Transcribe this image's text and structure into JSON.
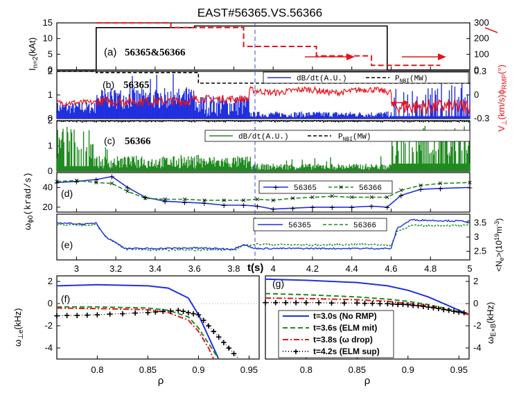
{
  "title": "EAST#56365.VS.56366",
  "colors": {
    "blue": "#1f2fe0",
    "red": "#e8131a",
    "green": "#1e8a1e",
    "black": "#000000"
  },
  "panels": {
    "a": {
      "tag": "(a)",
      "label": "56365&56366",
      "ylabel_base": "I",
      "ylabel_sub": "n=2",
      "ylabel_unit": "(kAt)",
      "y_right_base": "V",
      "y_right_sub": "⊥",
      "y_right_mid": "(km/s)ϕ",
      "y_right_sub2": "RMP",
      "y_right_unit": "(°)"
    },
    "b": {
      "tag": "(b)",
      "label": "56365",
      "legend_1": "dB/dt(A.U.)",
      "legend_2_base": "P",
      "legend_2_sub": "NBI",
      "legend_2_unit": "(MW)"
    },
    "c": {
      "tag": "(c)",
      "label": "56366",
      "legend_1": "dB/dt(A.U.)",
      "legend_2_base": "P",
      "legend_2_sub": "NBI",
      "legend_2_unit": "(MW)"
    },
    "d": {
      "tag": "(d)",
      "ylabel_base": "ω",
      "ylabel_sub": "ϕ0",
      "ylabel_unit": "(krad/s)",
      "legend_1": "56365",
      "legend_2": "56366"
    },
    "e": {
      "tag": "(e)",
      "ylabel_pre": "<N",
      "ylabel_sub": "e",
      "ylabel_post": ">(10",
      "ylabel_sup": "19",
      "ylabel_unit": "m",
      "ylabel_sup2": "-3",
      "ylabel_close": ")",
      "legend_1": "56365",
      "legend_2": "56366",
      "xlabel": "t(s)"
    },
    "f": {
      "tag": "(f)",
      "ylabel_base": "ω",
      "ylabel_sub": "⊥e",
      "ylabel_unit": "(kHz)",
      "xlabel": "ρ"
    },
    "g": {
      "tag": "(g)",
      "ylabel_base": "ω",
      "ylabel_sub": "E×B",
      "ylabel_unit": "(kHz)",
      "xlabel": "ρ",
      "legend": [
        "t=3.0s (No RMP)",
        "t=3.6s (ELM mit)",
        "t=3.8s (ω drop)",
        "t=4.2s (ELM sup)"
      ]
    }
  },
  "chart_data": [
    {
      "type": "line",
      "panel": "a",
      "xlim": [
        2.9,
        5.0
      ],
      "ylim_left": [
        0,
        15
      ],
      "ylim_right": [
        0,
        300
      ],
      "yticks_left": [
        "0",
        "5",
        "10",
        "15"
      ],
      "yticks_right": [
        "0",
        "100",
        "200",
        "300"
      ],
      "series": [
        {
          "name": "I n=2 (56365&56366)",
          "color": "black",
          "x": [
            2.9,
            3.1,
            3.1,
            3.6,
            3.6,
            3.88,
            3.88,
            4.58,
            4.58,
            5.0
          ],
          "y": [
            0,
            0,
            13.5,
            13.5,
            14,
            14,
            14,
            14,
            0,
            0
          ]
        },
        {
          "name": "ϕRMP 56365",
          "color": "red",
          "x": [
            3.1,
            3.48,
            3.48,
            3.85,
            3.85,
            4.22,
            4.22,
            4.5,
            4.5,
            4.85
          ],
          "y": [
            310,
            310,
            270,
            270,
            150,
            150,
            90,
            90,
            30,
            30
          ]
        }
      ]
    },
    {
      "type": "line",
      "panel": "b",
      "xlim": [
        2.9,
        5.0
      ],
      "ylim": [
        0,
        2
      ],
      "ylim_right": [
        -0.3,
        0.3
      ],
      "yticks_left": [
        "0",
        "1",
        "2"
      ],
      "yticks_right": [
        "-0.3",
        "0",
        "0.3"
      ],
      "series": [
        {
          "name": "dB/dt(A.U.)",
          "color": "blue"
        },
        {
          "name": "P NBI(MW)",
          "color": "black",
          "x": [
            2.9,
            3.1,
            3.1,
            3.62,
            3.62,
            5.0
          ],
          "y": [
            2.0,
            2.0,
            1.95,
            1.95,
            1.5,
            1.5
          ]
        },
        {
          "name": "V⊥ (km/s)",
          "color": "red"
        }
      ]
    },
    {
      "type": "line",
      "panel": "c",
      "xlim": [
        2.9,
        5.0
      ],
      "ylim": [
        0,
        2
      ],
      "yticks_left": [
        "0",
        "1",
        "2"
      ],
      "series": [
        {
          "name": "dB/dt(A.U.)",
          "color": "green"
        },
        {
          "name": "P NBI(MW)",
          "color": "black",
          "x": [
            2.9,
            5.0
          ],
          "y": [
            2.0,
            2.0
          ]
        }
      ]
    },
    {
      "type": "line",
      "panel": "d",
      "xlim": [
        2.9,
        5.0
      ],
      "ylim": [
        15,
        55
      ],
      "yticks_left": [
        "20",
        "40"
      ],
      "series": [
        {
          "name": "56365",
          "color": "blue",
          "x": [
            2.9,
            3.0,
            3.1,
            3.18,
            3.26,
            3.35,
            3.45,
            3.55,
            3.65,
            3.75,
            3.85,
            3.92,
            4.0,
            4.1,
            4.2,
            4.3,
            4.4,
            4.5,
            4.58,
            4.65,
            4.75,
            4.85,
            5.0
          ],
          "y": [
            45,
            46,
            48,
            51,
            40,
            30,
            26,
            25,
            24,
            22,
            22,
            21,
            18,
            19,
            20,
            20,
            20,
            21,
            20,
            32,
            38,
            39,
            40
          ]
        },
        {
          "name": "56366",
          "color": "green",
          "x": [
            2.9,
            3.0,
            3.1,
            3.18,
            3.26,
            3.35,
            3.45,
            3.55,
            3.65,
            3.75,
            3.85,
            3.92,
            4.0,
            4.1,
            4.2,
            4.3,
            4.4,
            4.5,
            4.58,
            4.65,
            4.75,
            4.85,
            5.0
          ],
          "y": [
            46,
            47,
            45,
            44,
            36,
            29,
            28,
            28,
            27,
            27,
            27,
            28,
            27,
            29,
            30,
            31,
            30,
            30,
            30,
            37,
            42,
            44,
            45
          ]
        }
      ]
    },
    {
      "type": "line",
      "panel": "e",
      "xlim": [
        2.9,
        5.0
      ],
      "ylim": [
        2.2,
        3.8
      ],
      "yticks_right": [
        "2.5",
        "3",
        "3.5"
      ],
      "xticks": [
        "3",
        "3.2",
        "3.4",
        "3.6",
        "3.8",
        "4",
        "4.2",
        "4.4",
        "4.6",
        "4.8",
        "5"
      ],
      "series": [
        {
          "name": "56365",
          "color": "blue",
          "x": [
            2.9,
            3.05,
            3.1,
            3.15,
            3.25,
            3.4,
            3.6,
            3.8,
            3.85,
            3.9,
            4.2,
            4.5,
            4.6,
            4.63,
            4.7,
            5.0
          ],
          "y": [
            3.5,
            3.45,
            3.5,
            3.0,
            2.6,
            2.6,
            2.62,
            2.58,
            2.75,
            2.6,
            2.6,
            2.6,
            2.6,
            3.3,
            3.6,
            3.55
          ]
        },
        {
          "name": "56366",
          "color": "green",
          "x": [
            2.9,
            3.05,
            3.1,
            3.15,
            3.25,
            3.4,
            3.6,
            3.8,
            3.85,
            3.9,
            4.2,
            4.5,
            4.6,
            4.63,
            4.7,
            5.0
          ],
          "y": [
            3.45,
            3.4,
            3.45,
            3.0,
            2.58,
            2.55,
            2.55,
            2.55,
            2.7,
            2.75,
            2.72,
            2.75,
            2.7,
            3.2,
            3.4,
            3.4
          ]
        }
      ]
    },
    {
      "type": "line",
      "panel": "f",
      "xlim": [
        0.76,
        0.96
      ],
      "ylim": [
        -5,
        2.5
      ],
      "yticks_left": [
        "-4",
        "-2",
        "0",
        "2"
      ],
      "xticks": [
        "0.8",
        "0.85",
        "0.9",
        "0.95"
      ],
      "series": [
        {
          "name": "t=3.0s (No RMP)",
          "color": "blue",
          "x": [
            0.76,
            0.8,
            0.85,
            0.87,
            0.89,
            0.9,
            0.91,
            0.92
          ],
          "y": [
            1.6,
            1.7,
            1.6,
            1.4,
            0.5,
            -1,
            -3,
            -5
          ]
        },
        {
          "name": "t=3.6s (ELM mit)",
          "color": "green",
          "x": [
            0.76,
            0.8,
            0.85,
            0.87,
            0.89,
            0.9,
            0.91,
            0.92
          ],
          "y": [
            -0.3,
            -0.3,
            -0.4,
            -0.6,
            -1.2,
            -2.2,
            -3.6,
            -5
          ]
        },
        {
          "name": "t=3.8s (ω drop)",
          "color": "red",
          "x": [
            0.76,
            0.8,
            0.85,
            0.87,
            0.89,
            0.9,
            0.91,
            0.915
          ],
          "y": [
            -0.4,
            -0.45,
            -0.55,
            -0.8,
            -1.5,
            -2.5,
            -4,
            -5
          ]
        },
        {
          "name": "t=4.2s (ELM sup)",
          "color": "black",
          "x": [
            0.76,
            0.8,
            0.85,
            0.88,
            0.9,
            0.92,
            0.94
          ],
          "y": [
            -1.1,
            -1.0,
            -0.8,
            -0.6,
            -1.0,
            -3.0,
            -5.0
          ]
        }
      ]
    },
    {
      "type": "line",
      "panel": "g",
      "xlim": [
        0.76,
        0.96
      ],
      "ylim": [
        -5,
        2.5
      ],
      "yticks_right": [
        "-4",
        "-2",
        "0",
        "2"
      ],
      "xticks": [
        "0.8",
        "0.85",
        "0.9",
        "0.95"
      ],
      "series": [
        {
          "name": "t=3.0s (No RMP)",
          "color": "blue",
          "x": [
            0.76,
            0.8,
            0.85,
            0.88,
            0.9,
            0.92,
            0.94,
            0.96
          ],
          "y": [
            2.2,
            2.1,
            1.9,
            1.6,
            1.2,
            0.6,
            -0.2,
            -1.0
          ]
        },
        {
          "name": "t=3.6s (ELM mit)",
          "color": "green",
          "x": [
            0.76,
            0.8,
            0.85,
            0.88,
            0.9,
            0.92,
            0.94,
            0.96
          ],
          "y": [
            0.9,
            0.8,
            0.6,
            0.4,
            0.2,
            -0.1,
            -0.5,
            -1.0
          ]
        },
        {
          "name": "t=3.8s (ω drop)",
          "color": "red",
          "x": [
            0.76,
            0.8,
            0.85,
            0.88,
            0.9,
            0.92,
            0.94,
            0.96
          ],
          "y": [
            0.5,
            0.45,
            0.35,
            0.2,
            0.0,
            -0.2,
            -0.6,
            -1.0
          ]
        },
        {
          "name": "t=4.2s (ELM sup)",
          "color": "black",
          "x": [
            0.76,
            0.8,
            0.85,
            0.88,
            0.9,
            0.92,
            0.94,
            0.96
          ],
          "y": [
            0.1,
            0.1,
            0.05,
            0.0,
            -0.1,
            -0.3,
            -0.6,
            -0.9
          ]
        }
      ]
    }
  ]
}
